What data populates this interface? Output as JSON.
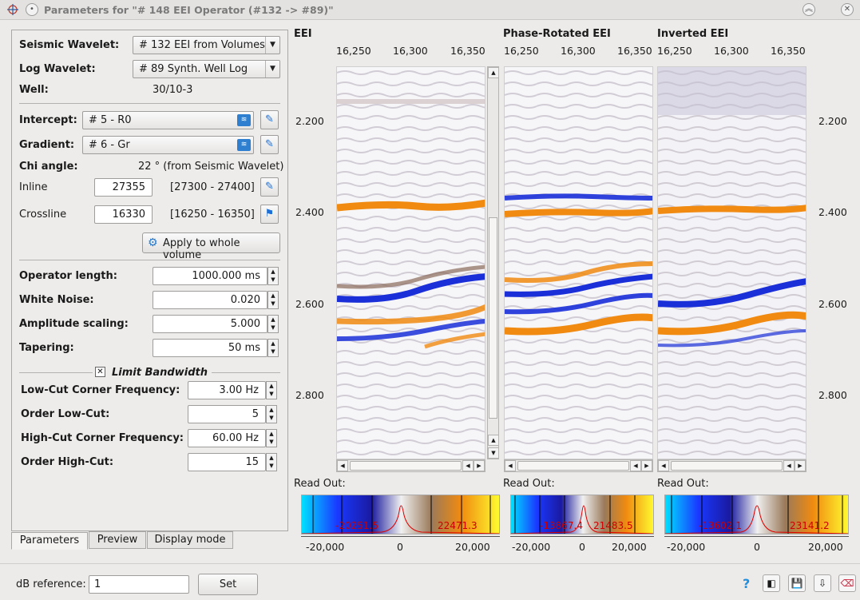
{
  "window": {
    "title": "Parameters for \"# 148 EEI Operator (#132 -> #89)\""
  },
  "params": {
    "seismic_wavelet": {
      "label": "Seismic Wavelet:",
      "value": "# 132 EEI from Volumes"
    },
    "log_wavelet": {
      "label": "Log Wavelet:",
      "value": "# 89 Synth. Well Log"
    },
    "well": {
      "label": "Well:",
      "value": "30/10-3"
    },
    "intercept": {
      "label": "Intercept:",
      "value": "# 5 - R0"
    },
    "gradient": {
      "label": "Gradient:",
      "value": "# 6 - Gr"
    },
    "chi": {
      "label": "Chi angle:",
      "value": "22 ° (from Seismic Wavelet)"
    },
    "inline": {
      "label": "Inline",
      "value": "27355",
      "range": "[27300 - 27400]"
    },
    "crossline": {
      "label": "Crossline",
      "value": "16330",
      "range": "[16250 - 16350]"
    },
    "apply_label": "Apply to whole volume",
    "operator_length": {
      "label": "Operator length:",
      "value": "1000.000 ms"
    },
    "white_noise": {
      "label": "White Noise:",
      "value": "0.020"
    },
    "amplitude_scaling": {
      "label": "Amplitude scaling:",
      "value": "5.000"
    },
    "tapering": {
      "label": "Tapering:",
      "value": "50 ms"
    },
    "limit_bandwidth": {
      "label": "Limit Bandwidth",
      "checked": true
    },
    "low_cut": {
      "label": "Low-Cut Corner Frequency:",
      "value": "3.00 Hz"
    },
    "order_low": {
      "label": "Order Low-Cut:",
      "value": "5"
    },
    "high_cut": {
      "label": "High-Cut Corner Frequency:",
      "value": "60.00 Hz"
    },
    "order_high": {
      "label": "Order High-Cut:",
      "value": "15"
    }
  },
  "tabs": [
    "Parameters",
    "Preview",
    "Display mode"
  ],
  "panels": {
    "titles": [
      "EEI",
      "Phase-Rotated EEI",
      "Inverted EEI"
    ],
    "x_ticks": [
      "16,250",
      "16,300",
      "16,350"
    ],
    "y_ticks": [
      "2.200",
      "2.400",
      "2.600",
      "2.800"
    ],
    "readout_label": "Read Out:",
    "colorbars": [
      {
        "low": "-20251.5",
        "high": "22471.3"
      },
      {
        "low": "-13867.4",
        "high": "21483.5"
      },
      {
        "low": "-13602.1",
        "high": "23141.2"
      }
    ],
    "cbar_ticks": [
      "-20,000",
      "0",
      "20,000"
    ]
  },
  "bottom": {
    "db_label": "dB reference:",
    "db_value": "1",
    "set_label": "Set"
  },
  "colors": {
    "orange": "#f08a10",
    "blue": "#1a2fd8",
    "brown": "#8a6a5a"
  }
}
